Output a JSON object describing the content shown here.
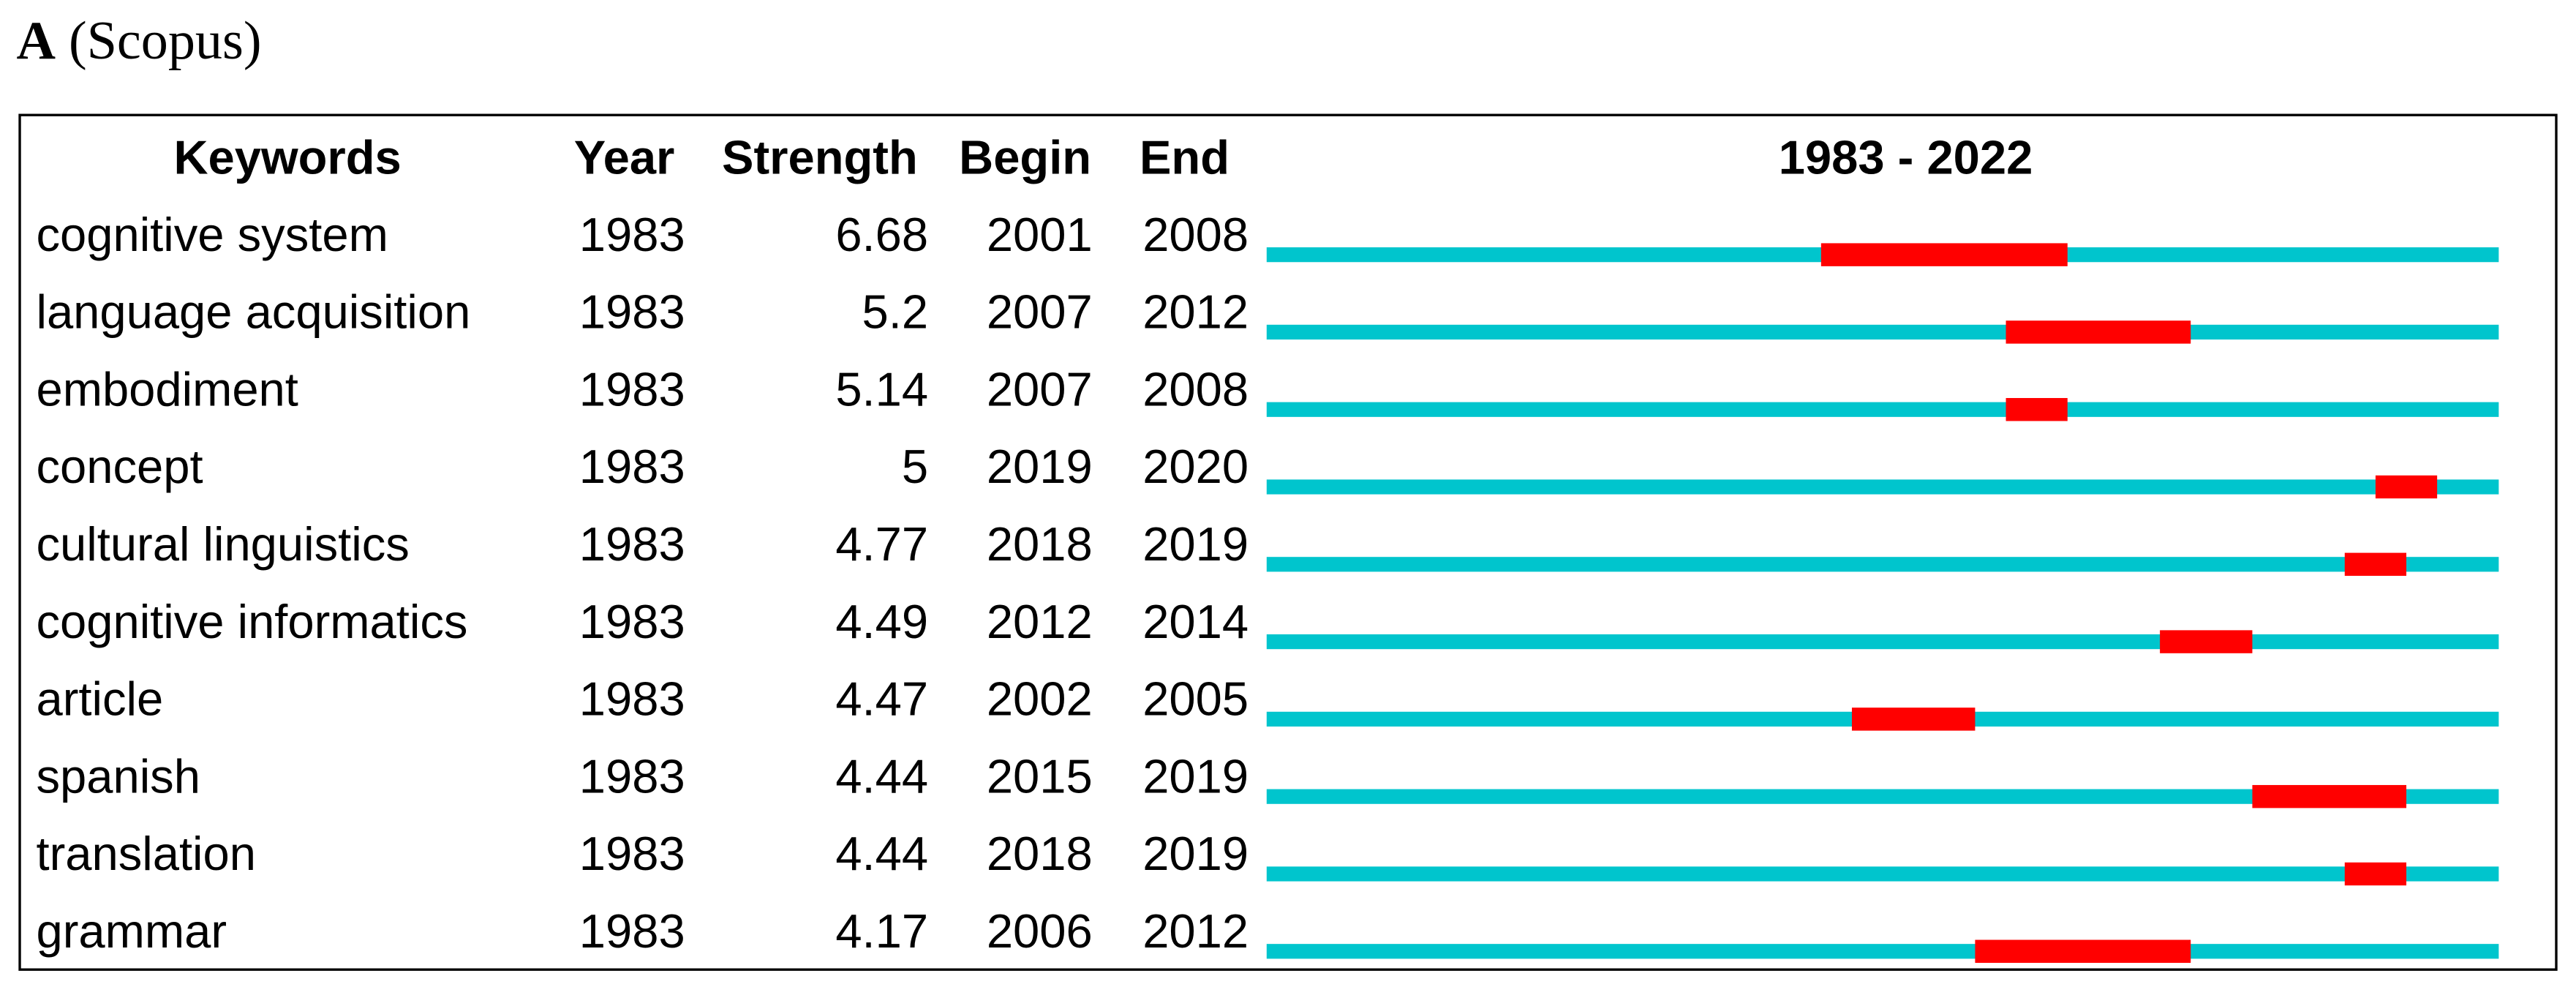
{
  "header": {
    "label": "A",
    "source": "(Scopus)"
  },
  "table": {
    "columns": [
      "Keywords",
      "Year",
      "Strength",
      "Begin",
      "End",
      "1983 - 2022"
    ],
    "timeline_range": [
      1983,
      2022
    ],
    "rows": [
      {
        "keyword": "cognitive system",
        "year": 1983,
        "strength": 6.68,
        "begin": 2001,
        "end": 2008
      },
      {
        "keyword": "language acquisition",
        "year": 1983,
        "strength": 5.2,
        "begin": 2007,
        "end": 2012
      },
      {
        "keyword": "embodiment",
        "year": 1983,
        "strength": 5.14,
        "begin": 2007,
        "end": 2008
      },
      {
        "keyword": "concept",
        "year": 1983,
        "strength": 5,
        "begin": 2019,
        "end": 2020
      },
      {
        "keyword": "cultural linguistics",
        "year": 1983,
        "strength": 4.77,
        "begin": 2018,
        "end": 2019
      },
      {
        "keyword": "cognitive informatics",
        "year": 1983,
        "strength": 4.49,
        "begin": 2012,
        "end": 2014
      },
      {
        "keyword": "article",
        "year": 1983,
        "strength": 4.47,
        "begin": 2002,
        "end": 2005
      },
      {
        "keyword": "spanish",
        "year": 1983,
        "strength": 4.44,
        "begin": 2015,
        "end": 2019
      },
      {
        "keyword": "translation",
        "year": 1983,
        "strength": 4.44,
        "begin": 2018,
        "end": 2019
      },
      {
        "keyword": "grammar",
        "year": 1983,
        "strength": 4.17,
        "begin": 2006,
        "end": 2012
      }
    ]
  }
}
